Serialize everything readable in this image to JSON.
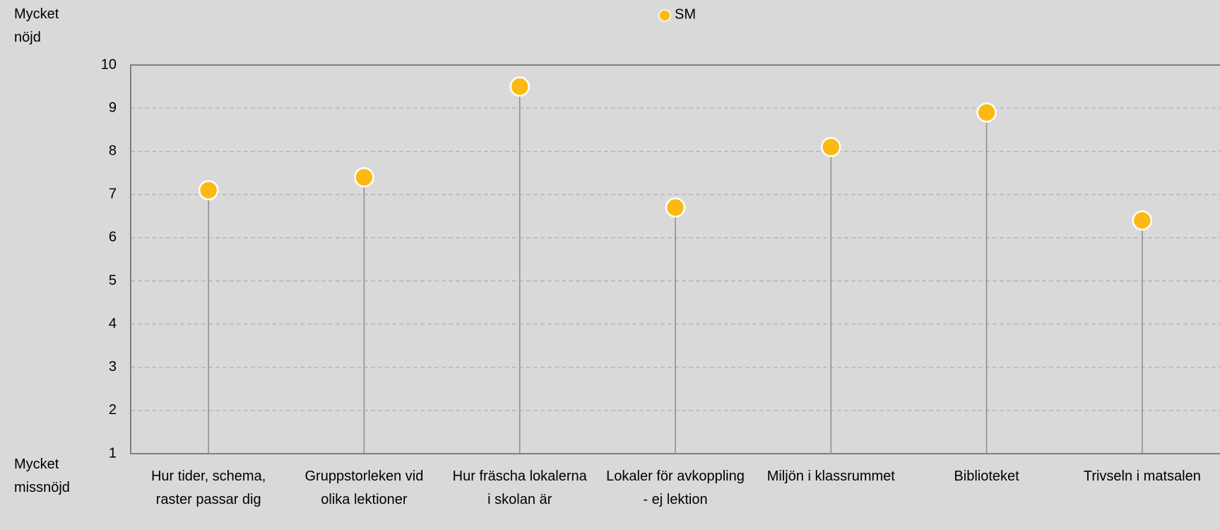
{
  "chart_data": {
    "type": "lollipop",
    "legend": "SM",
    "annotations": [
      "Mycket nöjd",
      "Mycket missnöjd"
    ],
    "categories": [
      "Hur tider, schema, raster passar dig",
      "Gruppstorleken vid olika lektioner",
      "Hur fräscha lokalerna i skolan är",
      "Lokaler för avkoppling - ej lektion",
      "Miljön i klassrummet",
      "Biblioteket",
      "Trivseln i matsalen"
    ],
    "values": [
      7.1,
      7.4,
      9.5,
      6.7,
      8.1,
      8.9,
      6.4
    ],
    "color": "#fdb913",
    "ylim": [
      1,
      10
    ],
    "yticks": [
      1,
      2,
      3,
      4,
      5,
      6,
      7,
      8,
      9,
      10
    ],
    "grid": true
  }
}
